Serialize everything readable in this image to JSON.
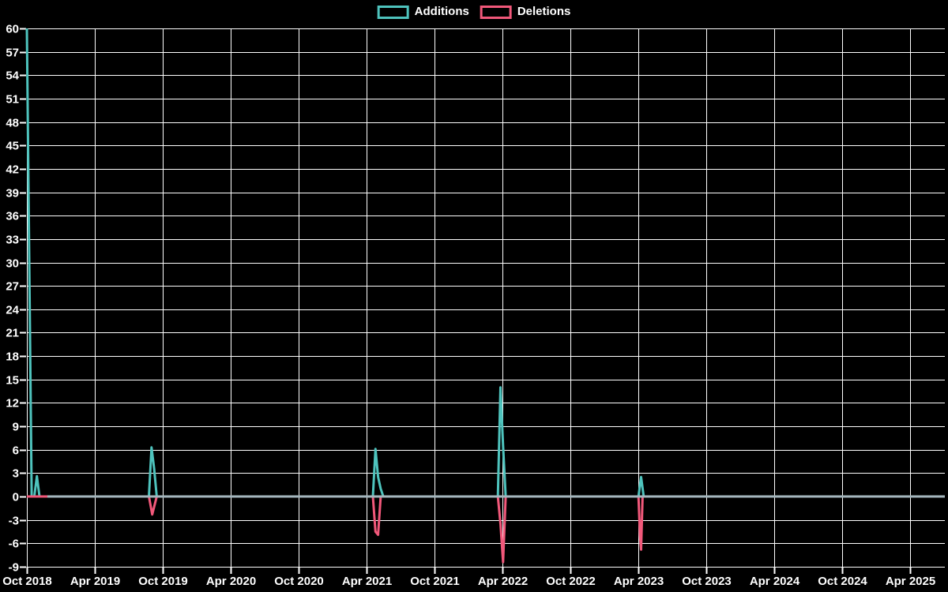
{
  "chart_data": {
    "type": "line",
    "title": "",
    "xlabel": "",
    "ylabel": "",
    "legend_position": "top-center",
    "grid": true,
    "background_color": "#000000",
    "grid_color": "#ffffff",
    "text_color": "#ffffff",
    "zero_line_color": "#a4b6bd",
    "ylim": [
      -9,
      60
    ],
    "y_ticks": [
      60,
      57,
      54,
      51,
      48,
      45,
      42,
      39,
      36,
      33,
      30,
      27,
      24,
      21,
      18,
      15,
      12,
      9,
      6,
      3,
      0,
      -3,
      -6,
      -9
    ],
    "x_ticks": [
      "Oct 2018",
      "Apr 2019",
      "Oct 2019",
      "Apr 2020",
      "Oct 2020",
      "Apr 2021",
      "Oct 2021",
      "Apr 2022",
      "Oct 2022",
      "Apr 2023",
      "Oct 2023",
      "Apr 2024",
      "Oct 2024",
      "Apr 2025"
    ],
    "x_tick_dates": [
      "2018-10-01",
      "2019-04-01",
      "2019-10-01",
      "2020-04-01",
      "2020-10-01",
      "2021-04-01",
      "2021-10-01",
      "2022-04-01",
      "2022-10-01",
      "2023-04-01",
      "2023-10-01",
      "2024-04-01",
      "2024-10-01",
      "2025-04-01"
    ],
    "x_range": [
      "2018-10-01",
      "2025-07-01"
    ],
    "series": [
      {
        "name": "Additions",
        "color": "#4ec3bd",
        "points": [
          [
            "2018-10-01",
            60
          ],
          [
            "2018-10-14",
            0
          ],
          [
            "2018-10-21",
            0
          ],
          [
            "2018-10-28",
            2.6
          ],
          [
            "2018-11-04",
            0
          ],
          [
            "2019-08-25",
            0
          ],
          [
            "2019-09-01",
            6.3
          ],
          [
            "2019-09-08",
            3.6
          ],
          [
            "2019-09-15",
            0
          ],
          [
            "2021-04-18",
            0
          ],
          [
            "2021-04-25",
            6.1
          ],
          [
            "2021-05-02",
            2.5
          ],
          [
            "2021-05-09",
            1
          ],
          [
            "2021-05-16",
            0
          ],
          [
            "2022-03-20",
            0
          ],
          [
            "2022-03-27",
            14
          ],
          [
            "2022-04-03",
            6.5
          ],
          [
            "2022-04-10",
            0
          ],
          [
            "2023-04-02",
            0
          ],
          [
            "2023-04-09",
            2.5
          ],
          [
            "2023-04-16",
            0
          ],
          [
            "2025-07-01",
            0
          ]
        ]
      },
      {
        "name": "Deletions",
        "color": "#f1587a",
        "points": [
          [
            "2018-10-01",
            0
          ],
          [
            "2019-08-25",
            0
          ],
          [
            "2019-09-03",
            -2.3
          ],
          [
            "2019-09-15",
            0
          ],
          [
            "2021-04-18",
            0
          ],
          [
            "2021-04-25",
            -4.5
          ],
          [
            "2021-05-02",
            -4.9
          ],
          [
            "2021-05-09",
            0
          ],
          [
            "2022-03-20",
            0
          ],
          [
            "2022-03-27",
            -3.5
          ],
          [
            "2022-04-03",
            -8.4
          ],
          [
            "2022-04-10",
            0
          ],
          [
            "2023-04-02",
            0
          ],
          [
            "2023-04-06",
            -5
          ],
          [
            "2023-04-09",
            -6.8
          ],
          [
            "2023-04-13",
            0
          ],
          [
            "2025-07-01",
            0
          ]
        ]
      }
    ]
  }
}
